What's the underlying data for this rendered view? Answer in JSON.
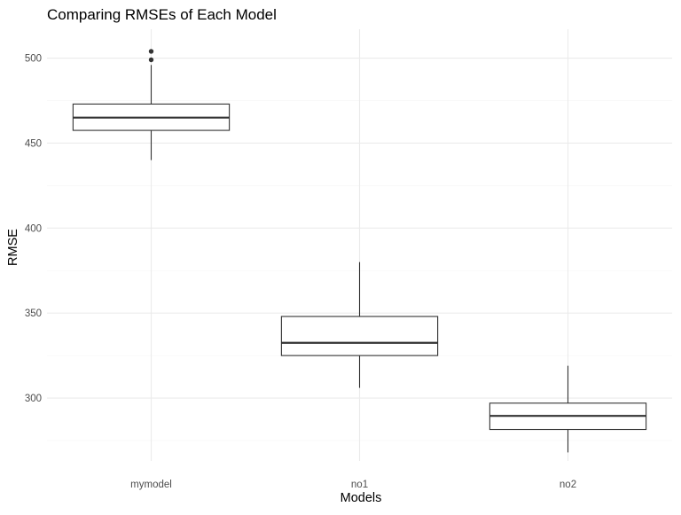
{
  "chart_data": {
    "type": "boxplot",
    "title": "Comparing RMSEs of Each Model",
    "xlabel": "Models",
    "ylabel": "RMSE",
    "ylim": [
      263,
      517
    ],
    "y_ticks": [
      300,
      350,
      400,
      450,
      500
    ],
    "y_tick_labels": [
      "300",
      "350",
      "400",
      "450",
      "500"
    ],
    "grid": true,
    "theme": "minimal",
    "categories": [
      "mymodel",
      "no1",
      "no2"
    ],
    "boxes": [
      {
        "category": "mymodel",
        "whisker_low": 440,
        "q1": 457.5,
        "median": 465,
        "q3": 473,
        "whisker_high": 496,
        "outliers": [
          499,
          504
        ]
      },
      {
        "category": "no1",
        "whisker_low": 306,
        "q1": 325,
        "median": 332.5,
        "q3": 348,
        "whisker_high": 380,
        "outliers": []
      },
      {
        "category": "no2",
        "whisker_low": 268,
        "q1": 281.5,
        "median": 289.5,
        "q3": 297,
        "whisker_high": 319,
        "outliers": []
      }
    ],
    "colors": {
      "background": "#ffffff",
      "grid_major": "#ebebeb",
      "grid_minor": "#f4f4f4",
      "box_fill": "#ffffff",
      "box_stroke": "#333333",
      "text": "#000000",
      "tick_text": "#4d4d4d"
    }
  }
}
